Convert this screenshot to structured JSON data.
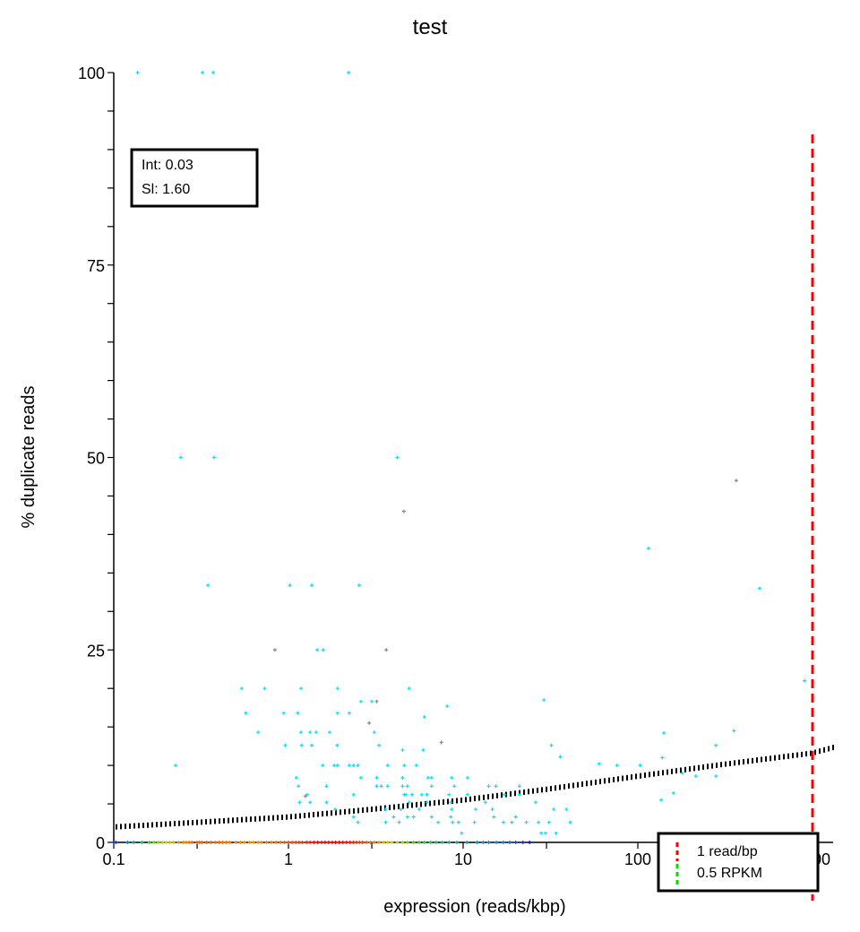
{
  "chart_data": {
    "type": "scatter",
    "title": "test",
    "xlabel": "expression (reads/kbp)",
    "ylabel": "% duplicate reads",
    "xscale": "log",
    "xlim": [
      0.1,
      1300
    ],
    "ylim": [
      0,
      100
    ],
    "xticks": [
      0.1,
      1,
      10,
      100,
      1000
    ],
    "xtick_labels": [
      "0.1",
      "1",
      "10",
      "100",
      "1000"
    ],
    "yticks": [
      0,
      25,
      50,
      75,
      100
    ],
    "ytick_labels": [
      "0",
      "25",
      "50",
      "75",
      "100"
    ],
    "grid": false,
    "annotation": {
      "int_label": "Int: 0.03",
      "sl_label": "Sl: 1.60"
    },
    "legend": {
      "placement": "bottom-right",
      "entries": [
        {
          "label": "1 read/bp",
          "color": "#ff0000",
          "style": "dashed"
        },
        {
          "label": "0.5 RPKM",
          "color": "#00dd00",
          "style": "dashed"
        }
      ]
    },
    "vlines": [
      {
        "x": 1000,
        "color": "#ff0000",
        "style": "dashed"
      }
    ],
    "colors": {
      "points": "#00e0ff",
      "points_alt": "#888888",
      "fit": "#000000",
      "density_low": "#0000ff",
      "density_high": "#ff0000"
    },
    "fit_curve": {
      "x": [
        0.1,
        0.3,
        1,
        3,
        10,
        30,
        100,
        300,
        1000,
        1300
      ],
      "y": [
        2.0,
        2.6,
        3.3,
        4.3,
        5.5,
        6.9,
        8.6,
        10.1,
        11.6,
        12.3
      ]
    },
    "series": [
      {
        "color": "#00e0ff",
        "points": [
          [
            0.137,
            100
          ],
          [
            0.322,
            100
          ],
          [
            0.371,
            100
          ],
          [
            2.21,
            100
          ],
          [
            0.242,
            50
          ],
          [
            0.375,
            50
          ],
          [
            4.2,
            50
          ],
          [
            0.346,
            33.4
          ],
          [
            1.02,
            33.4
          ],
          [
            1.36,
            33.4
          ],
          [
            2.54,
            33.4
          ],
          [
            115,
            38.2
          ],
          [
            498,
            33
          ],
          [
            1.46,
            25
          ],
          [
            1.58,
            25
          ],
          [
            900,
            21
          ],
          [
            0.54,
            20
          ],
          [
            0.73,
            20
          ],
          [
            1.18,
            20
          ],
          [
            1.91,
            20
          ],
          [
            4.9,
            20
          ],
          [
            0.57,
            16.8
          ],
          [
            0.94,
            16.8
          ],
          [
            1.13,
            16.8
          ],
          [
            1.91,
            16.8
          ],
          [
            2.23,
            16.8
          ],
          [
            8.1,
            17.7
          ],
          [
            6.0,
            16.3
          ],
          [
            2.6,
            18.3
          ],
          [
            3.0,
            18.3
          ],
          [
            29,
            18.5
          ],
          [
            0.67,
            14.3
          ],
          [
            1.18,
            14.3
          ],
          [
            1.33,
            14.3
          ],
          [
            1.44,
            14.3
          ],
          [
            1.72,
            14.3
          ],
          [
            3.1,
            14.3
          ],
          [
            0.96,
            12.6
          ],
          [
            1.19,
            12.6
          ],
          [
            1.36,
            12.6
          ],
          [
            1.9,
            12.6
          ],
          [
            3.3,
            12.6
          ],
          [
            4.5,
            12
          ],
          [
            5.9,
            12
          ],
          [
            32,
            12.6
          ],
          [
            36,
            11.1
          ],
          [
            1.57,
            10
          ],
          [
            1.83,
            10
          ],
          [
            1.91,
            10
          ],
          [
            2.23,
            10
          ],
          [
            2.36,
            10
          ],
          [
            2.5,
            10
          ],
          [
            3.7,
            10
          ],
          [
            4.6,
            10
          ],
          [
            5.4,
            10
          ],
          [
            0.226,
            10
          ],
          [
            1.11,
            8.4
          ],
          [
            2.6,
            8.4
          ],
          [
            3.2,
            8.4
          ],
          [
            4.5,
            8.4
          ],
          [
            6.3,
            8.4
          ],
          [
            6.6,
            8.4
          ],
          [
            8.6,
            8.4
          ],
          [
            10.6,
            8.4
          ],
          [
            1.14,
            7.3
          ],
          [
            1.65,
            7.3
          ],
          [
            3.2,
            7.3
          ],
          [
            3.4,
            7.3
          ],
          [
            3.7,
            7.3
          ],
          [
            4.5,
            7.3
          ],
          [
            4.8,
            7.3
          ],
          [
            6.6,
            7.3
          ],
          [
            8.9,
            7.3
          ],
          [
            14,
            7.3
          ],
          [
            15.4,
            7.3
          ],
          [
            21,
            7.3
          ],
          [
            1.28,
            6.2
          ],
          [
            2.36,
            6.2
          ],
          [
            4.6,
            6.2
          ],
          [
            4.7,
            6.2
          ],
          [
            5.1,
            6.2
          ],
          [
            5.8,
            6.2
          ],
          [
            6.2,
            6.2
          ],
          [
            8.3,
            6.2
          ],
          [
            10.6,
            6.2
          ],
          [
            17.2,
            6.2
          ],
          [
            21,
            6.2
          ],
          [
            1.16,
            5.2
          ],
          [
            1.33,
            5.2
          ],
          [
            1.65,
            5.2
          ],
          [
            4.9,
            5.2
          ],
          [
            6.2,
            5.2
          ],
          [
            8.5,
            5.2
          ],
          [
            13.4,
            5.2
          ],
          [
            26,
            5.2
          ],
          [
            1.85,
            4.3
          ],
          [
            3.6,
            4.3
          ],
          [
            4.4,
            4.3
          ],
          [
            5.6,
            4.3
          ],
          [
            8.6,
            4.3
          ],
          [
            11.8,
            4.3
          ],
          [
            14.7,
            4.3
          ],
          [
            33,
            4.3
          ],
          [
            39,
            4.3
          ],
          [
            2.36,
            3.3
          ],
          [
            4.0,
            3.3
          ],
          [
            4.8,
            3.3
          ],
          [
            5.2,
            3.3
          ],
          [
            6.6,
            3.3
          ],
          [
            8.5,
            3.3
          ],
          [
            15,
            3.3
          ],
          [
            20,
            3.3
          ],
          [
            2.5,
            2.6
          ],
          [
            3.6,
            2.6
          ],
          [
            4.3,
            2.6
          ],
          [
            7.2,
            2.6
          ],
          [
            8.7,
            2.6
          ],
          [
            9.4,
            2.6
          ],
          [
            11.6,
            2.6
          ],
          [
            17,
            2.6
          ],
          [
            19,
            2.6
          ],
          [
            23,
            2.6
          ],
          [
            27,
            2.6
          ],
          [
            31,
            2.6
          ],
          [
            41,
            2.6
          ],
          [
            9.8,
            1.2
          ],
          [
            28,
            1.2
          ],
          [
            29.6,
            1.2
          ],
          [
            34,
            1.2
          ],
          [
            138,
            11
          ],
          [
            141,
            14.2
          ],
          [
            103,
            10
          ],
          [
            76,
            10
          ],
          [
            60,
            10.2
          ],
          [
            280,
            12.6
          ],
          [
            355,
            14.5
          ],
          [
            180,
            9
          ],
          [
            136,
            5.5
          ],
          [
            160,
            6.4
          ],
          [
            215,
            8.6
          ],
          [
            280,
            8.6
          ]
        ]
      },
      {
        "color": "#888888",
        "points": [
          [
            4.58,
            43
          ],
          [
            366,
            47
          ],
          [
            0.837,
            25
          ],
          [
            3.63,
            25
          ],
          [
            2.9,
            15.5
          ],
          [
            3.2,
            18.3
          ],
          [
            1.25,
            6
          ],
          [
            7.5,
            13
          ]
        ]
      },
      {
        "color": "density",
        "points": [
          [
            0.1,
            0
          ],
          [
            0.103,
            0
          ],
          [
            0.12,
            0
          ],
          [
            0.13,
            0
          ],
          [
            0.145,
            0
          ],
          [
            0.16,
            0
          ],
          [
            0.17,
            0
          ],
          [
            0.18,
            0
          ],
          [
            0.19,
            0
          ],
          [
            0.2,
            0
          ],
          [
            0.21,
            0
          ],
          [
            0.22,
            0
          ],
          [
            0.235,
            0
          ],
          [
            0.25,
            0
          ],
          [
            0.26,
            0
          ],
          [
            0.27,
            0
          ],
          [
            0.28,
            0
          ],
          [
            0.3,
            0
          ],
          [
            0.31,
            0
          ],
          [
            0.32,
            0
          ],
          [
            0.34,
            0
          ],
          [
            0.36,
            0
          ],
          [
            0.38,
            0
          ],
          [
            0.4,
            0
          ],
          [
            0.42,
            0
          ],
          [
            0.44,
            0
          ],
          [
            0.46,
            0
          ],
          [
            0.5,
            0
          ],
          [
            0.53,
            0
          ],
          [
            0.56,
            0
          ],
          [
            0.6,
            0
          ],
          [
            0.63,
            0
          ],
          [
            0.67,
            0
          ],
          [
            0.7,
            0
          ],
          [
            0.75,
            0
          ],
          [
            0.8,
            0
          ],
          [
            0.85,
            0
          ],
          [
            0.9,
            0
          ],
          [
            0.95,
            0
          ],
          [
            1.0,
            0
          ],
          [
            1.05,
            0
          ],
          [
            1.1,
            0
          ],
          [
            1.15,
            0
          ],
          [
            1.2,
            0
          ],
          [
            1.27,
            0
          ],
          [
            1.33,
            0
          ],
          [
            1.4,
            0
          ],
          [
            1.47,
            0
          ],
          [
            1.55,
            0
          ],
          [
            1.62,
            0
          ],
          [
            1.7,
            0
          ],
          [
            1.78,
            0
          ],
          [
            1.86,
            0
          ],
          [
            1.95,
            0
          ],
          [
            2.05,
            0
          ],
          [
            2.15,
            0
          ],
          [
            2.25,
            0
          ],
          [
            2.35,
            0
          ],
          [
            2.45,
            0
          ],
          [
            2.55,
            0
          ],
          [
            2.65,
            0
          ],
          [
            2.8,
            0
          ],
          [
            2.95,
            0
          ],
          [
            3.1,
            0
          ],
          [
            3.3,
            0
          ],
          [
            3.5,
            0
          ],
          [
            3.7,
            0
          ],
          [
            3.9,
            0
          ],
          [
            4.2,
            0
          ],
          [
            4.5,
            0
          ],
          [
            4.8,
            0
          ],
          [
            5.2,
            0
          ],
          [
            5.6,
            0
          ],
          [
            6.0,
            0
          ],
          [
            6.5,
            0
          ],
          [
            7.0,
            0
          ],
          [
            7.6,
            0
          ],
          [
            8.3,
            0
          ],
          [
            9.2,
            0
          ],
          [
            10.5,
            0
          ],
          [
            12,
            0
          ],
          [
            13,
            0
          ],
          [
            14,
            0
          ],
          [
            15.5,
            0
          ],
          [
            17,
            0
          ],
          [
            18.5,
            0
          ],
          [
            20,
            0
          ],
          [
            22,
            0
          ],
          [
            24,
            0
          ]
        ]
      }
    ]
  }
}
